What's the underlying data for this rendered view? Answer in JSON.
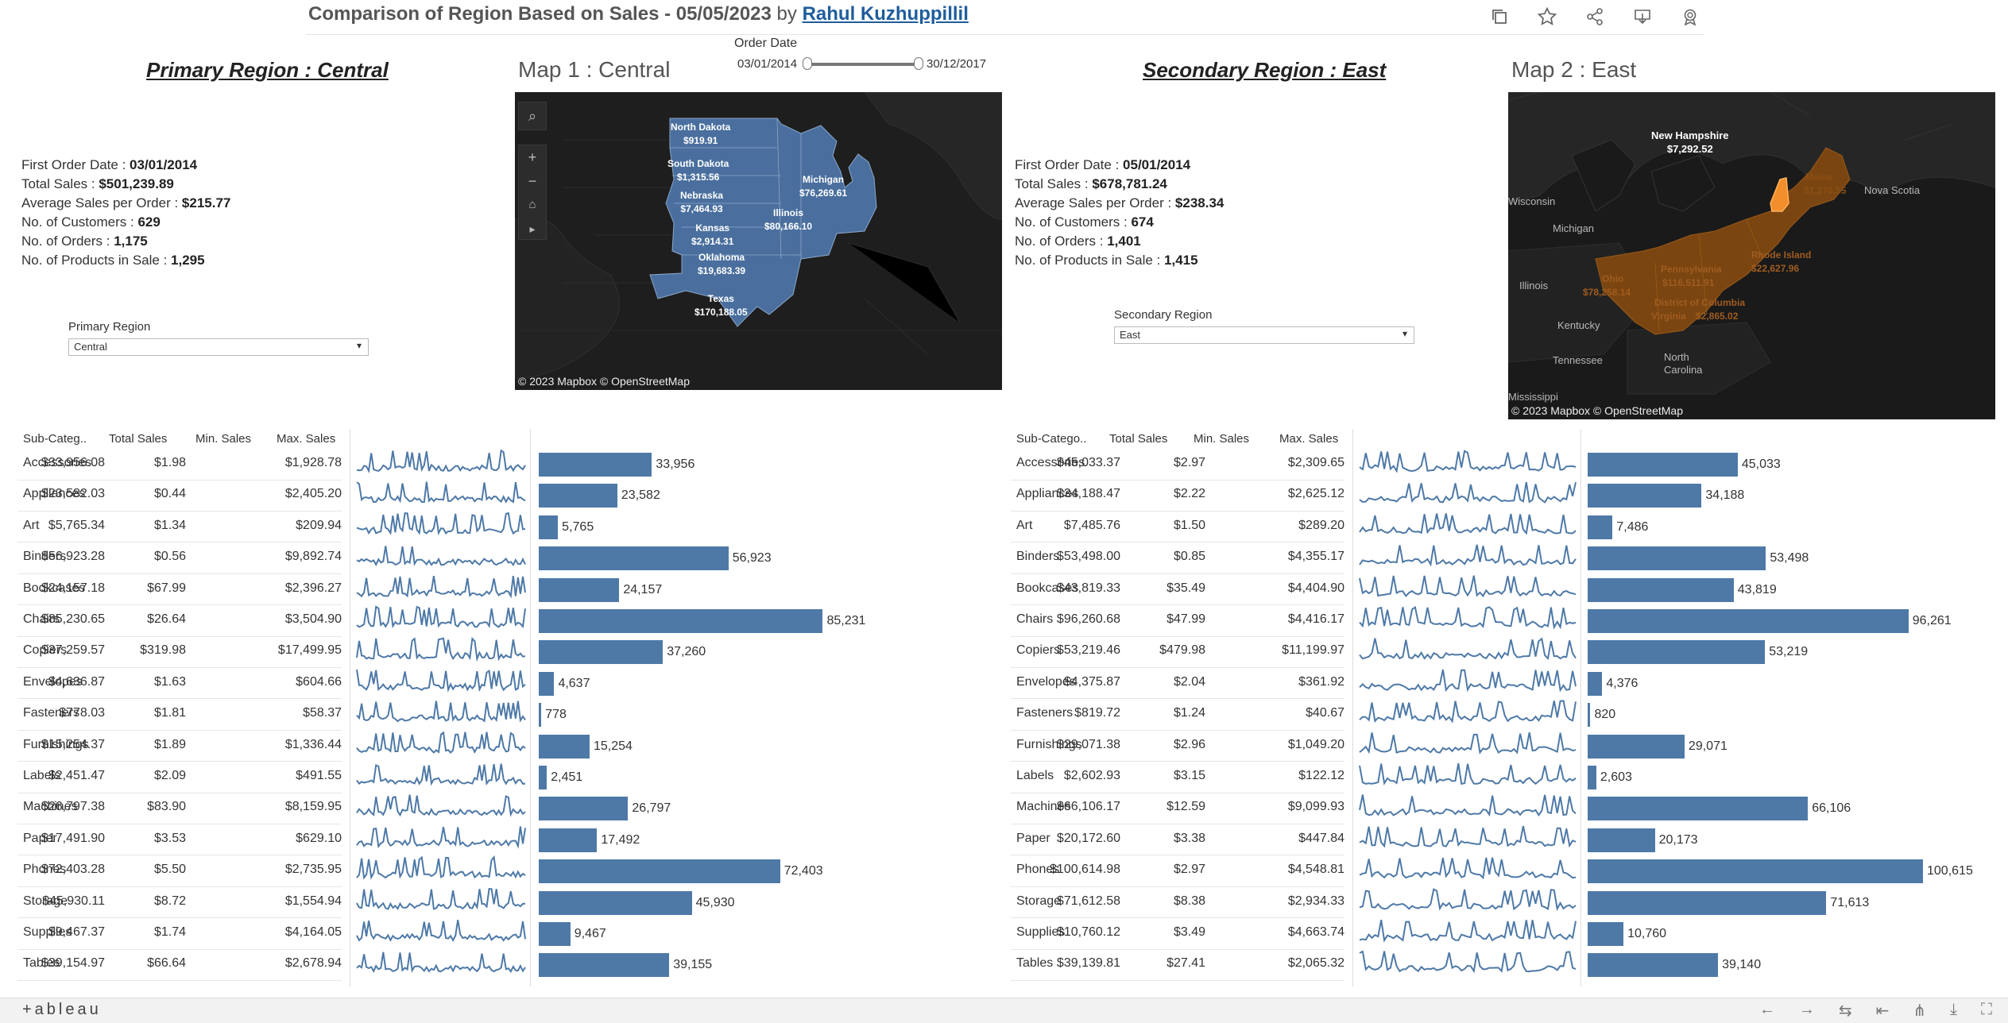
{
  "title": {
    "main": "Comparison of Region Based on Sales - 05/05/2023",
    "by": "by",
    "author": "Rahul Kuzhuppillil"
  },
  "toolbar_icons": [
    "copy-icon",
    "star-icon",
    "share-icon",
    "download-icon",
    "badge-icon"
  ],
  "order_date": {
    "label": "Order Date",
    "start": "03/01/2014",
    "end": "30/12/2017"
  },
  "primary": {
    "header": "Primary Region  : Central",
    "map_title": "Map 1 : Central",
    "stats": [
      {
        "label": "First Order Date  : ",
        "value": "03/01/2014"
      },
      {
        "label": "Total Sales : ",
        "value": "$501,239.89"
      },
      {
        "label": "Average Sales per Order : ",
        "value": "$215.77"
      },
      {
        "label": "No. of Customers : ",
        "value": "629"
      },
      {
        "label": "No. of Orders : ",
        "value": "1,175"
      },
      {
        "label": "No. of Products in Sale : ",
        "value": "1,295"
      }
    ],
    "dropdown_label": "Primary Region",
    "dropdown_value": "Central",
    "map_labels": [
      {
        "name": "North Dakota",
        "value": "$919.91"
      },
      {
        "name": "South Dakota",
        "value": "$1,315.56"
      },
      {
        "name": "Nebraska",
        "value": "$7,464.93"
      },
      {
        "name": "Kansas",
        "value": "$2,914.31"
      },
      {
        "name": "Oklahoma",
        "value": "$19,683.39"
      },
      {
        "name": "Texas",
        "value": "$170,188.05"
      },
      {
        "name": "Michigan",
        "value": "$76,269.61"
      },
      {
        "name": "Illinois",
        "value": "$80,166.10"
      }
    ],
    "map_copyright": "© 2023 Mapbox  © OpenStreetMap",
    "columns": [
      "Sub-Categ..",
      "Total Sales",
      "Min. Sales",
      "Max. Sales"
    ],
    "rows": [
      {
        "cat": "Accessories",
        "total": "$33,956.08",
        "min": "$1.98",
        "max": "$1,928.78",
        "bar": 33956,
        "bar_label": "33,956"
      },
      {
        "cat": "Appliances",
        "total": "$23,582.03",
        "min": "$0.44",
        "max": "$2,405.20",
        "bar": 23582,
        "bar_label": "23,582"
      },
      {
        "cat": "Art",
        "total": "$5,765.34",
        "min": "$1.34",
        "max": "$209.94",
        "bar": 5765,
        "bar_label": "5,765"
      },
      {
        "cat": "Binders",
        "total": "$56,923.28",
        "min": "$0.56",
        "max": "$9,892.74",
        "bar": 56923,
        "bar_label": "56,923"
      },
      {
        "cat": "Bookcases",
        "total": "$24,157.18",
        "min": "$67.99",
        "max": "$2,396.27",
        "bar": 24157,
        "bar_label": "24,157"
      },
      {
        "cat": "Chairs",
        "total": "$85,230.65",
        "min": "$26.64",
        "max": "$3,504.90",
        "bar": 85231,
        "bar_label": "85,231"
      },
      {
        "cat": "Copiers",
        "total": "$37,259.57",
        "min": "$319.98",
        "max": "$17,499.95",
        "bar": 37260,
        "bar_label": "37,260"
      },
      {
        "cat": "Envelopes",
        "total": "$4,636.87",
        "min": "$1.63",
        "max": "$604.66",
        "bar": 4637,
        "bar_label": "4,637"
      },
      {
        "cat": "Fasteners",
        "total": "$778.03",
        "min": "$1.81",
        "max": "$58.37",
        "bar": 778,
        "bar_label": "778"
      },
      {
        "cat": "Furnishings",
        "total": "$15,254.37",
        "min": "$1.89",
        "max": "$1,336.44",
        "bar": 15254,
        "bar_label": "15,254"
      },
      {
        "cat": "Labels",
        "total": "$2,451.47",
        "min": "$2.09",
        "max": "$491.55",
        "bar": 2451,
        "bar_label": "2,451"
      },
      {
        "cat": "Machines",
        "total": "$26,797.38",
        "min": "$83.90",
        "max": "$8,159.95",
        "bar": 26797,
        "bar_label": "26,797"
      },
      {
        "cat": "Paper",
        "total": "$17,491.90",
        "min": "$3.53",
        "max": "$629.10",
        "bar": 17492,
        "bar_label": "17,492"
      },
      {
        "cat": "Phones",
        "total": "$72,403.28",
        "min": "$5.50",
        "max": "$2,735.95",
        "bar": 72403,
        "bar_label": "72,403"
      },
      {
        "cat": "Storage",
        "total": "$45,930.11",
        "min": "$8.72",
        "max": "$1,554.94",
        "bar": 45930,
        "bar_label": "45,930"
      },
      {
        "cat": "Supplies",
        "total": "$9,467.37",
        "min": "$1.74",
        "max": "$4,164.05",
        "bar": 9467,
        "bar_label": "9,467"
      },
      {
        "cat": "Tables",
        "total": "$39,154.97",
        "min": "$66.64",
        "max": "$2,678.94",
        "bar": 39155,
        "bar_label": "39,155"
      }
    ]
  },
  "secondary": {
    "header": "Secondary Region : East",
    "map_title": "Map 2 : East",
    "stats": [
      {
        "label": "First Order Date  : ",
        "value": "05/01/2014"
      },
      {
        "label": "Total Sales : ",
        "value": "$678,781.24"
      },
      {
        "label": "Average Sales per Order : ",
        "value": "$238.34"
      },
      {
        "label": "No. of Customers : ",
        "value": "674"
      },
      {
        "label": "No. of Orders : ",
        "value": "1,401"
      },
      {
        "label": "No. of Products in Sale : ",
        "value": "1,415"
      }
    ],
    "dropdown_label": "Secondary Region",
    "dropdown_value": "East",
    "map_highlight": {
      "name": "New Hampshire",
      "value": "$7,292.52"
    },
    "map_dim_labels": [
      {
        "text": "Maine"
      },
      {
        "text": "$1,270.55"
      },
      {
        "text": "Pennsylvania"
      },
      {
        "text": "$116,511.91"
      },
      {
        "text": "Rhode Island"
      },
      {
        "text": "$22,627.96"
      },
      {
        "text": "Ohio"
      },
      {
        "text": "$78,258.14"
      },
      {
        "text": "District of Columbia"
      },
      {
        "text": "Virginia"
      },
      {
        "text": "$2,865.02"
      }
    ],
    "map_places": [
      "Nova Scotia",
      "Wisconsin",
      "Michigan",
      "Illinois",
      "Kentucky",
      "Tennessee",
      "North Carolina",
      "Mississippi"
    ],
    "map_copyright": "© 2023 Mapbox  © OpenStreetMap",
    "columns": [
      "Sub-Catego..",
      "Total Sales",
      "Min. Sales",
      "Max. Sales"
    ],
    "rows": [
      {
        "cat": "Accessories",
        "total": "$45,033.37",
        "min": "$2.97",
        "max": "$2,309.65",
        "bar": 45033,
        "bar_label": "45,033"
      },
      {
        "cat": "Appliances",
        "total": "$34,188.47",
        "min": "$2.22",
        "max": "$2,625.12",
        "bar": 34188,
        "bar_label": "34,188"
      },
      {
        "cat": "Art",
        "total": "$7,485.76",
        "min": "$1.50",
        "max": "$289.20",
        "bar": 7486,
        "bar_label": "7,486"
      },
      {
        "cat": "Binders",
        "total": "$53,498.00",
        "min": "$0.85",
        "max": "$4,355.17",
        "bar": 53498,
        "bar_label": "53,498"
      },
      {
        "cat": "Bookcases",
        "total": "$43,819.33",
        "min": "$35.49",
        "max": "$4,404.90",
        "bar": 43819,
        "bar_label": "43,819"
      },
      {
        "cat": "Chairs",
        "total": "$96,260.68",
        "min": "$47.99",
        "max": "$4,416.17",
        "bar": 96261,
        "bar_label": "96,261"
      },
      {
        "cat": "Copiers",
        "total": "$53,219.46",
        "min": "$479.98",
        "max": "$11,199.97",
        "bar": 53219,
        "bar_label": "53,219"
      },
      {
        "cat": "Envelopes",
        "total": "$4,375.87",
        "min": "$2.04",
        "max": "$361.92",
        "bar": 4376,
        "bar_label": "4,376"
      },
      {
        "cat": "Fasteners",
        "total": "$819.72",
        "min": "$1.24",
        "max": "$40.67",
        "bar": 820,
        "bar_label": "820"
      },
      {
        "cat": "Furnishings",
        "total": "$29,071.38",
        "min": "$2.96",
        "max": "$1,049.20",
        "bar": 29071,
        "bar_label": "29,071"
      },
      {
        "cat": "Labels",
        "total": "$2,602.93",
        "min": "$3.15",
        "max": "$122.12",
        "bar": 2603,
        "bar_label": "2,603"
      },
      {
        "cat": "Machines",
        "total": "$66,106.17",
        "min": "$12.59",
        "max": "$9,099.93",
        "bar": 66106,
        "bar_label": "66,106"
      },
      {
        "cat": "Paper",
        "total": "$20,172.60",
        "min": "$3.38",
        "max": "$447.84",
        "bar": 20173,
        "bar_label": "20,173"
      },
      {
        "cat": "Phones",
        "total": "$100,614.98",
        "min": "$2.97",
        "max": "$4,548.81",
        "bar": 100615,
        "bar_label": "100,615"
      },
      {
        "cat": "Storage",
        "total": "$71,612.58",
        "min": "$8.38",
        "max": "$2,934.33",
        "bar": 71613,
        "bar_label": "71,613"
      },
      {
        "cat": "Supplies",
        "total": "$10,760.12",
        "min": "$3.49",
        "max": "$4,663.74",
        "bar": 10760,
        "bar_label": "10,760"
      },
      {
        "cat": "Tables",
        "total": "$39,139.81",
        "min": "$27.41",
        "max": "$2,065.32",
        "bar": 39140,
        "bar_label": "39,140"
      }
    ]
  },
  "bar_scale_max": 100615,
  "colors": {
    "bar": "#4e79a7",
    "map_region": "#4a6f9e",
    "map_hi": "#f28e2b",
    "map_dim": "#7a4510"
  },
  "bottom": {
    "logo": "+ableau"
  },
  "bottom_icons": [
    "back-icon",
    "forward-icon",
    "revert-icon",
    "first-icon",
    "share-icon",
    "download-icon",
    "fullscreen-icon"
  ]
}
